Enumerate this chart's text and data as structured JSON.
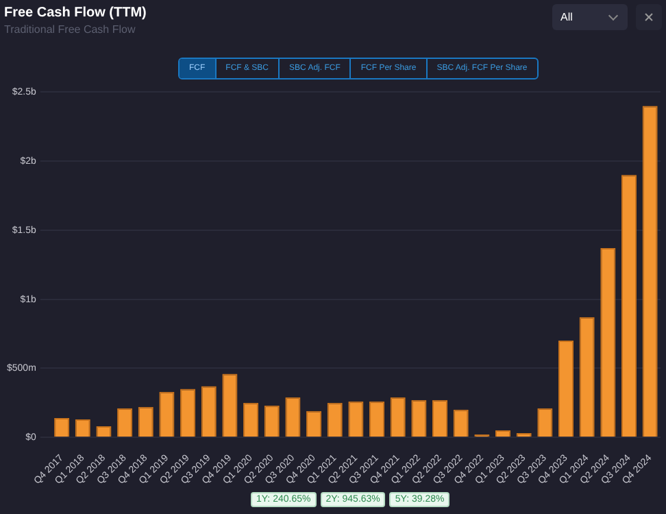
{
  "chart_data": {
    "type": "bar",
    "title": "Free Cash Flow (TTM)",
    "subtitle": "Traditional Free Cash Flow",
    "categories": [
      "Q4 2017",
      "Q1 2018",
      "Q2 2018",
      "Q3 2018",
      "Q4 2018",
      "Q1 2019",
      "Q2 2019",
      "Q3 2019",
      "Q4 2019",
      "Q1 2020",
      "Q2 2020",
      "Q3 2020",
      "Q4 2020",
      "Q1 2021",
      "Q2 2021",
      "Q3 2021",
      "Q4 2021",
      "Q1 2022",
      "Q2 2022",
      "Q3 2022",
      "Q4 2022",
      "Q1 2023",
      "Q2 2023",
      "Q3 2023",
      "Q4 2023",
      "Q1 2024",
      "Q2 2024",
      "Q3 2024",
      "Q4 2024"
    ],
    "values": [
      140000000,
      130000000,
      80000000,
      210000000,
      220000000,
      330000000,
      350000000,
      370000000,
      460000000,
      250000000,
      230000000,
      290000000,
      190000000,
      250000000,
      260000000,
      260000000,
      290000000,
      270000000,
      270000000,
      200000000,
      20000000,
      50000000,
      30000000,
      210000000,
      700000000,
      870000000,
      1370000000,
      1900000000,
      2400000000
    ],
    "color": "#f39530",
    "ylim": [
      0,
      2500000000
    ],
    "yticks": [
      {
        "value": 0,
        "label": "$0"
      },
      {
        "value": 500000000,
        "label": "$500m"
      },
      {
        "value": 1000000000,
        "label": "$1b"
      },
      {
        "value": 1500000000,
        "label": "$1.5b"
      },
      {
        "value": 2000000000,
        "label": "$2b"
      },
      {
        "value": 2500000000,
        "label": "$2.5b"
      }
    ],
    "grid": "y",
    "legend": false,
    "annotations": [
      "FCF",
      "FCF & SBC",
      "SBC Adj. FCF",
      "FCF Per Share",
      "SBC Adj. FCF Per Share",
      "All",
      "1Y: 240.65%",
      "2Y: 945.63%",
      "5Y: 39.28%"
    ]
  }
}
